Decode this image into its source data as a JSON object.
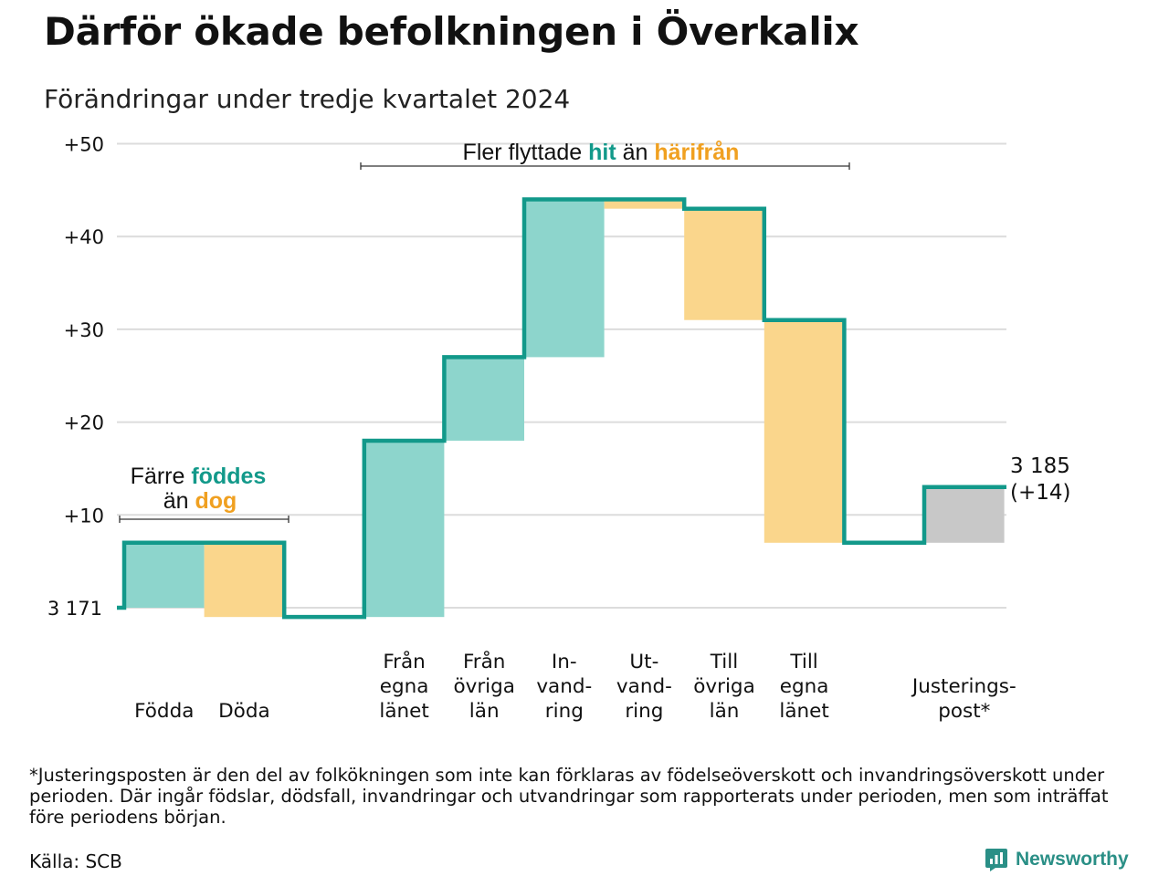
{
  "title": "Därför ökade befolkningen i Överkalix",
  "subtitle": "Förändringar under tredje kvartalet 2024",
  "chart_data": {
    "type": "waterfall",
    "baseline_label": "3 171",
    "start": 0,
    "y_tick_labels": [
      "+10",
      "+20",
      "+30",
      "+40",
      "+50"
    ],
    "y_ticks": [
      10,
      20,
      30,
      40,
      50
    ],
    "ylim": [
      0,
      50
    ],
    "colors": {
      "inflow": "#8dd5cc",
      "outflow": "#fad68c",
      "adjustment": "#c8c8c8",
      "line": "#12998a"
    },
    "steps": [
      {
        "label": [
          "Födda"
        ],
        "value": 7,
        "kind": "inflow",
        "slot": 0
      },
      {
        "label": [
          "Döda"
        ],
        "value": -8,
        "kind": "outflow",
        "slot": 1
      },
      {
        "label": [
          "Från",
          "egna",
          "länet"
        ],
        "value": 19,
        "kind": "inflow",
        "slot": 3
      },
      {
        "label": [
          "Från",
          "övriga",
          "län"
        ],
        "value": 9,
        "kind": "inflow",
        "slot": 4
      },
      {
        "label": [
          "In-",
          "vand-",
          "ring"
        ],
        "value": 17,
        "kind": "inflow",
        "slot": 5
      },
      {
        "label": [
          "Ut-",
          "vand-",
          "ring"
        ],
        "value": -1,
        "kind": "outflow",
        "slot": 6
      },
      {
        "label": [
          "Till",
          "övriga",
          "län"
        ],
        "value": -12,
        "kind": "outflow",
        "slot": 7
      },
      {
        "label": [
          "Till",
          "egna",
          "länet"
        ],
        "value": -24,
        "kind": "outflow",
        "slot": 8
      },
      {
        "label": [
          "Justerings-",
          "post*"
        ],
        "value": 6,
        "kind": "adjustment",
        "slot": 10
      }
    ],
    "end_label": [
      "3 185",
      "(+14)"
    ],
    "annotations": [
      {
        "parts": [
          {
            "text": "Färre ",
            "style": "plain"
          },
          {
            "text": "föddes",
            "style": "inflow"
          }
        ],
        "parts2": [
          {
            "text": "än ",
            "style": "plain"
          },
          {
            "text": "dog",
            "style": "outflow"
          }
        ]
      },
      {
        "parts": [
          {
            "text": "Fler flyttade ",
            "style": "plain"
          },
          {
            "text": "hit",
            "style": "inflow"
          },
          {
            "text": " än ",
            "style": "plain"
          },
          {
            "text": "härifrån",
            "style": "outflow"
          }
        ]
      }
    ]
  },
  "footnote": "*Justeringsposten är den del av folkökningen som inte kan förklaras av födelseöverskott och invandringsöverskott under perioden. Där ingår födslar, dödsfall, invandringar och utvandringar som rapporterats under perioden, men som inträffat före periodens början.",
  "source": "Källa: SCB",
  "brand": "Newsworthy"
}
